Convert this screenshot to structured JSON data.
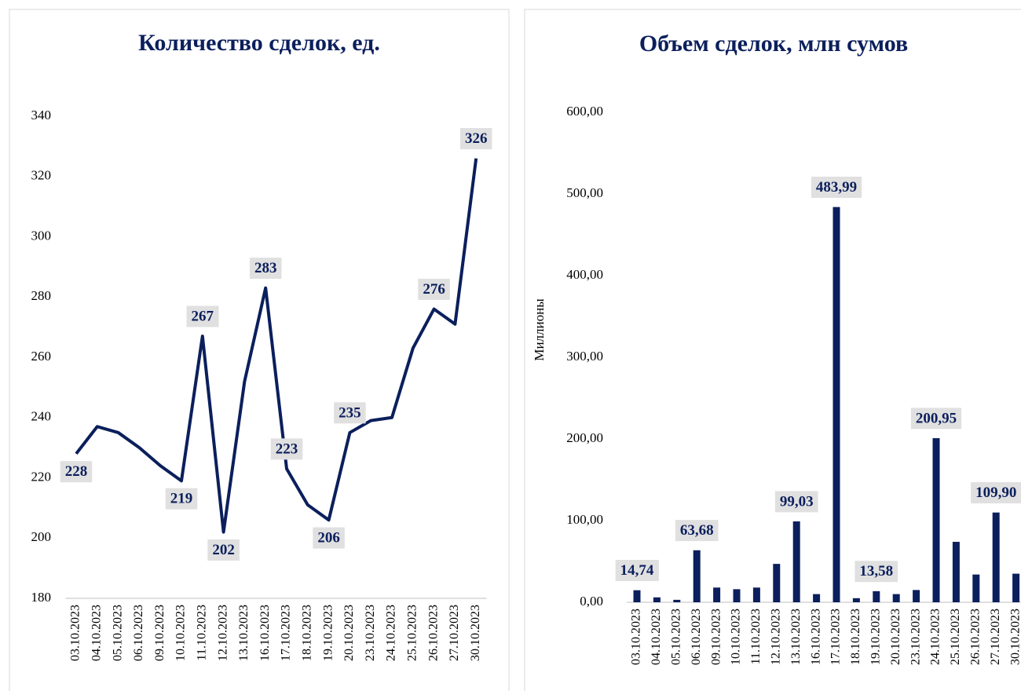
{
  "chart_data": [
    {
      "type": "line",
      "title": "Количество сделок, ед.",
      "categories": [
        "03.10.2023",
        "04.10.2023",
        "05.10.2023",
        "06.10.2023",
        "09.10.2023",
        "10.10.2023",
        "11.10.2023",
        "12.10.2023",
        "13.10.2023",
        "16.10.2023",
        "17.10.2023",
        "18.10.2023",
        "19.10.2023",
        "20.10.2023",
        "23.10.2023",
        "24.10.2023",
        "25.10.2023",
        "26.10.2023",
        "27.10.2023",
        "30.10.2023"
      ],
      "values": [
        228,
        237,
        235,
        230,
        224,
        219,
        267,
        202,
        252,
        283,
        223,
        211,
        206,
        235,
        239,
        240,
        263,
        276,
        271,
        326
      ],
      "value_labels": [
        "228",
        null,
        null,
        null,
        null,
        "219",
        "267",
        "202",
        null,
        "283",
        "223",
        null,
        "206",
        "235",
        null,
        null,
        null,
        "276",
        null,
        "326"
      ],
      "color": "#0b1f5c",
      "ylim": [
        180,
        340
      ],
      "yticks": [
        180,
        200,
        220,
        240,
        260,
        280,
        300,
        320,
        340
      ]
    },
    {
      "type": "bar",
      "title": "Объем сделок, млн сумов",
      "y_label": "Миллионы",
      "categories": [
        "03.10.2023",
        "04.10.2023",
        "05.10.2023",
        "06.10.2023",
        "09.10.2023",
        "10.10.2023",
        "11.10.2023",
        "12.10.2023",
        "13.10.2023",
        "16.10.2023",
        "17.10.2023",
        "18.10.2023",
        "19.10.2023",
        "20.10.2023",
        "23.10.2023",
        "24.10.2023",
        "25.10.2023",
        "26.10.2023",
        "27.10.2023",
        "30.10.2023"
      ],
      "values": [
        14.74,
        6,
        3,
        63.68,
        18,
        16,
        18,
        47,
        99.03,
        10,
        483.99,
        5,
        13.58,
        10,
        15,
        200.95,
        74,
        34,
        109.9,
        35
      ],
      "value_labels": [
        "14,74",
        null,
        null,
        "63,68",
        null,
        null,
        null,
        null,
        "99,03",
        null,
        "483,99",
        null,
        "13,58",
        null,
        null,
        "200,95",
        null,
        null,
        "109,90",
        null
      ],
      "color": "#0b1f5c",
      "ylim": [
        0,
        600
      ],
      "yticks": [
        {
          "value": 0,
          "label": "0,00"
        },
        {
          "value": 100,
          "label": "100,00"
        },
        {
          "value": 200,
          "label": "200,00"
        },
        {
          "value": 300,
          "label": "300,00"
        },
        {
          "value": 400,
          "label": "400,00"
        },
        {
          "value": 500,
          "label": "500,00"
        },
        {
          "value": 600,
          "label": "600,00"
        }
      ]
    }
  ]
}
